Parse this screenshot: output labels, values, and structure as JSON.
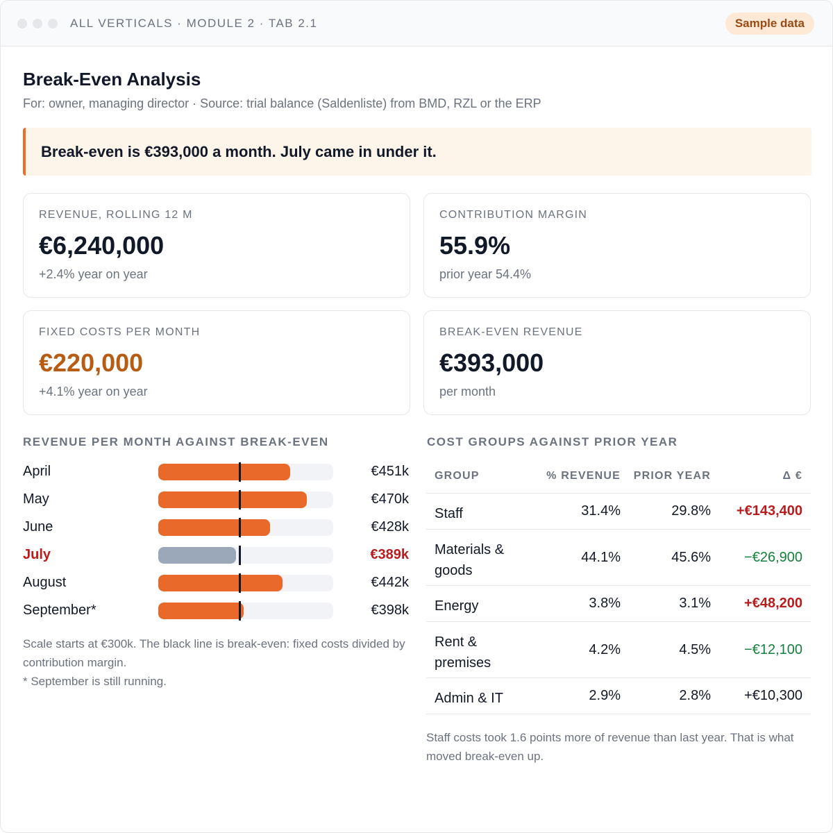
{
  "window": {
    "breadcrumb": "ALL VERTICALS · MODULE 2 · TAB 2.1",
    "badge": "Sample data"
  },
  "page": {
    "title": "Break-Even Analysis",
    "subtitle": "For: owner, managing director · Source: trial balance (Saldenliste) from BMD, RZL or the ERP",
    "callout": "Break-even is €393,000 a month. July came in under it."
  },
  "kpis": [
    {
      "label": "REVENUE, ROLLING 12 M",
      "value": "€6,240,000",
      "note": "+2.4% year on year"
    },
    {
      "label": "CONTRIBUTION MARGIN",
      "value": "55.9%",
      "note": "prior year 54.4%"
    },
    {
      "label": "FIXED COSTS PER MONTH",
      "value": "€220,000",
      "note": "+4.1% year on year"
    },
    {
      "label": "BREAK-EVEN REVENUE",
      "value": "€393,000",
      "note": "per month"
    }
  ],
  "colors": {
    "accent": "#e8712a",
    "fixed_costs_value": "#b85c14",
    "below_break_even": "#b91c1c",
    "bar_above": "#e8692a",
    "bar_below": "#9aa8b9",
    "track": "#f1f3f6",
    "marker": "#111827"
  },
  "chart_section": {
    "heading": "REVENUE PER MONTH AGAINST BREAK-EVEN",
    "note_line1": "Scale starts at €300k. The black line is break-even: fixed costs divided by contribution margin.",
    "note_line2": "* September is still running."
  },
  "chart_data": {
    "type": "bar",
    "orientation": "horizontal",
    "categories": [
      "April",
      "May",
      "June",
      "July",
      "August",
      "September*"
    ],
    "values": [
      451,
      470,
      428,
      389,
      442,
      398
    ],
    "value_labels": [
      "€451k",
      "€470k",
      "€428k",
      "€389k",
      "€442k",
      "€398k"
    ],
    "unit": "€k",
    "xlim": [
      300,
      500
    ],
    "reference_line": {
      "value": 393,
      "meaning": "break-even"
    },
    "highlight": "July"
  },
  "table_section": {
    "heading": "COST GROUPS AGAINST PRIOR YEAR",
    "columns": [
      "GROUP",
      "% REVENUE",
      "PRIOR YEAR",
      "Δ €"
    ],
    "rows": [
      {
        "group": "Staff",
        "rev": "31.4%",
        "prior": "29.8%",
        "delta": "+€143,400",
        "tone": "pos"
      },
      {
        "group": "Materials & goods",
        "rev": "44.1%",
        "prior": "45.6%",
        "delta": "−€26,900",
        "tone": "neg"
      },
      {
        "group": "Energy",
        "rev": "3.8%",
        "prior": "3.1%",
        "delta": "+€48,200",
        "tone": "pos"
      },
      {
        "group": "Rent & premises",
        "rev": "4.2%",
        "prior": "4.5%",
        "delta": "−€12,100",
        "tone": "neg"
      },
      {
        "group": "Admin & IT",
        "rev": "2.9%",
        "prior": "2.8%",
        "delta": "+€10,300",
        "tone": "plain"
      }
    ],
    "note": "Staff costs took 1.6 points more of revenue than last year. That is what moved break-even up."
  }
}
